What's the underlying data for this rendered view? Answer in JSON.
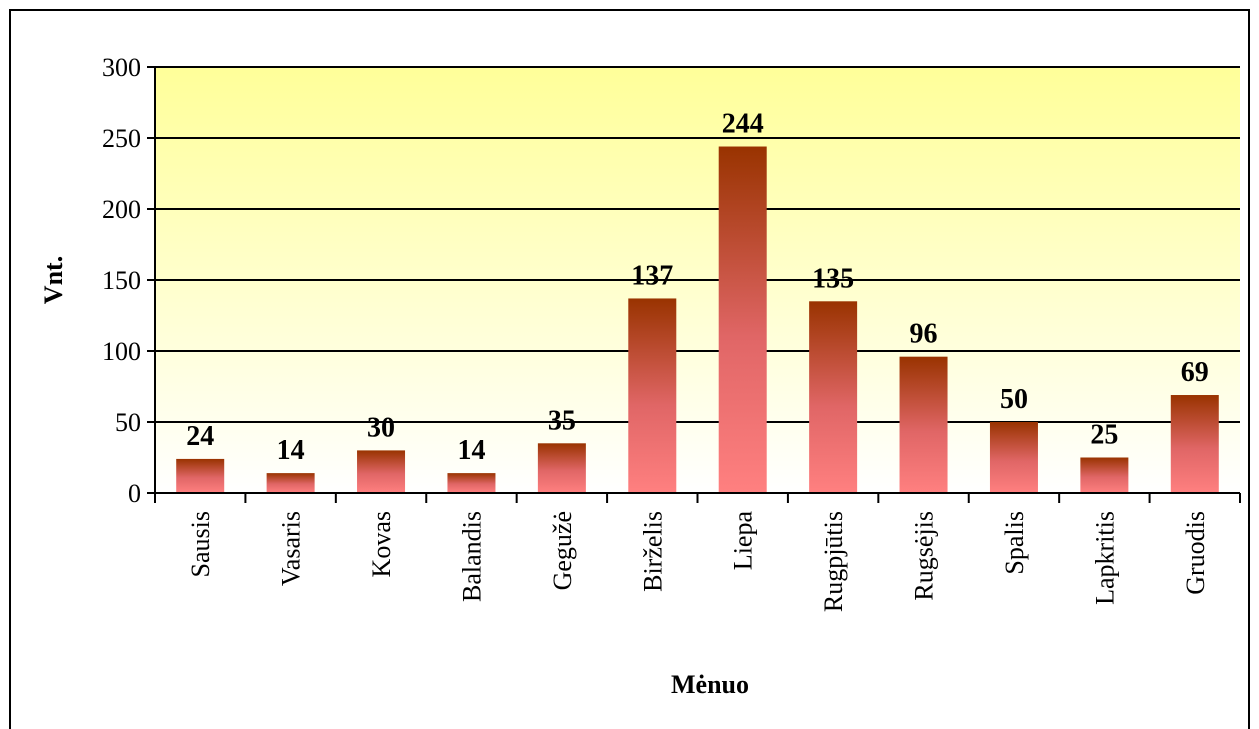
{
  "chart_data": {
    "type": "bar",
    "x_label": "Mėnuo",
    "y_label": "Vnt.",
    "categories": [
      "Sausis",
      "Vasaris",
      "Kovas",
      "Balandis",
      "Gegužė",
      "Birželis",
      "Liepa",
      "Rugpjūtis",
      "Rugsėjis",
      "Spalis",
      "Lapkritis",
      "Gruodis"
    ],
    "values": [
      24,
      14,
      30,
      14,
      35,
      137,
      244,
      135,
      96,
      50,
      25,
      69
    ],
    "color": "#993300",
    "ylim": [
      0,
      300
    ],
    "yticks": [
      0,
      50,
      100,
      150,
      200,
      250,
      300
    ],
    "grid": true
  }
}
